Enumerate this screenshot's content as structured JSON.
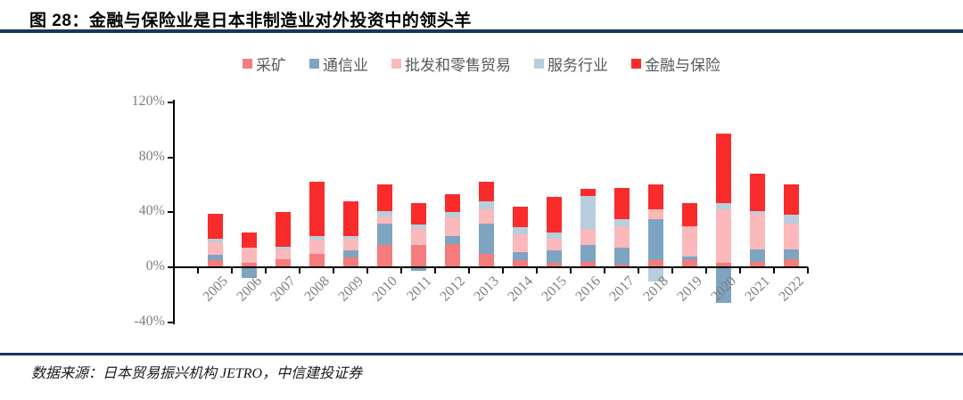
{
  "header": {
    "title": "图 28：金融与保险业是日本非制造业对外投资中的领头羊"
  },
  "footer": {
    "source": "数据来源：日本贸易振兴机构 JETRO，中信建投证券"
  },
  "colors": {
    "rule": "#17365d",
    "axis": "#000000",
    "axis_text": "#7f7f7f",
    "legend_text": "#595959",
    "background": "#ffffff"
  },
  "chart_data": {
    "type": "bar",
    "stacked": true,
    "grid": false,
    "legend_position": "top",
    "title": "图 28：金融与保险业是日本非制造业对外投资中的领头羊",
    "xlabel": "",
    "ylabel": "",
    "unit": "%",
    "ylim": [
      -40,
      120
    ],
    "y_ticks": [
      {
        "value": 120,
        "label": "120%"
      },
      {
        "value": 80,
        "label": "80%"
      },
      {
        "value": 40,
        "label": "40%"
      },
      {
        "value": 0,
        "label": "0%"
      },
      {
        "value": -40,
        "label": "-40%"
      }
    ],
    "categories": [
      "2005",
      "2006",
      "2007",
      "2008",
      "2009",
      "2010",
      "2011",
      "2012",
      "2013",
      "2014",
      "2015",
      "2016",
      "2017",
      "2018",
      "2019",
      "2020",
      "2021",
      "2022"
    ],
    "series": [
      {
        "name": "采矿",
        "color": "#f47c7c",
        "values": [
          5,
          3,
          6,
          10,
          7,
          16,
          16,
          17,
          10,
          5,
          3,
          4,
          2,
          5,
          5,
          3,
          4,
          6
        ]
      },
      {
        "name": "通信业",
        "color": "#7ea4c2",
        "values": [
          4,
          -7,
          0,
          0,
          5,
          16,
          -2,
          6,
          22,
          6,
          9,
          12,
          12,
          30,
          3,
          -25,
          9,
          7
        ]
      },
      {
        "name": "批发和零售贸易",
        "color": "#fbb9bc",
        "values": [
          9,
          11,
          7,
          10,
          9,
          5,
          12,
          13,
          10,
          13,
          9,
          12,
          16,
          7,
          22,
          39,
          26,
          19
        ]
      },
      {
        "name": "服务行业",
        "color": "#b7cedc",
        "values": [
          3,
          0,
          2,
          3,
          2,
          4,
          3,
          4,
          6,
          5,
          4,
          24,
          5,
          -10,
          0,
          5,
          2,
          6
        ]
      },
      {
        "name": "金融与保险",
        "color": "#fa2b2b",
        "values": [
          18,
          11,
          25,
          39,
          25,
          19,
          16,
          13,
          14,
          15,
          26,
          5,
          23,
          18,
          17,
          50,
          27,
          22
        ]
      }
    ]
  }
}
